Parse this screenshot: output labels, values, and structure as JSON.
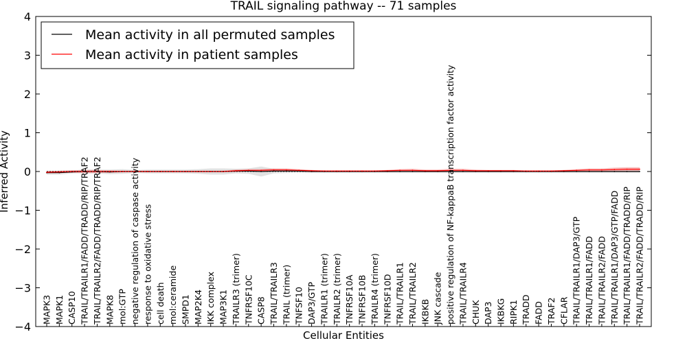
{
  "chart_data": {
    "type": "line",
    "title": "TRAIL signaling pathway -- 71 samples",
    "xlabel": "Cellular Entities",
    "ylabel": "Inferred Activity",
    "ylim": [
      -4,
      4
    ],
    "yticks": [
      -4,
      -3,
      -2,
      -1,
      0,
      1,
      2,
      3,
      4
    ],
    "ytick_labels": [
      "−4",
      "−3",
      "−2",
      "−1",
      "0",
      "1",
      "2",
      "3",
      "4"
    ],
    "grid": false,
    "legend_position": "top-left",
    "categories": [
      "MAPK3",
      "MAPK1",
      "CASP10",
      "TRAIL/TRAILR1/FADD/TRADD/RIP/TRAF2",
      "TRAIL/TRAILR2/FADD/TRADD/RIP/TRAF2",
      "MAPK8",
      "mol:GTP",
      "negative regulation of caspase activity",
      "response to oxidative stress",
      "cell death",
      "mol:ceramide",
      "SMPD1",
      "MAP2K4",
      "IKK complex",
      "MAP3K1",
      "TRAILR3 (trimer)",
      "TNFRSF10C",
      "CASP8",
      "TRAIL/TRAILR3",
      "TRAIL (trimer)",
      "TNFSF10",
      "DAP3/GTP",
      "TRAILR1 (trimer)",
      "TRAILR2 (trimer)",
      "TNFRSF10A",
      "TNFRSF10B",
      "TRAILR4 (trimer)",
      "TNFRSF10D",
      "TRAIL/TRAILR1",
      "TRAIL/TRAILR2",
      "IKBKB",
      "JNK cascade",
      "positive regulation of NF-kappaB transcription factor activity",
      "TRAIL/TRAILR4",
      "CHUK",
      "DAP3",
      "IKBKG",
      "RIPK1",
      "TRADD",
      "FADD",
      "TRAF2",
      "CFLAR",
      "TRAIL/TRAILR1/DAP3/GTP",
      "TRAIL/TRAILR1/FADD",
      "TRAIL/TRAILR2/FADD",
      "TRAIL/TRAILR1/DAP3/GTP/FADD",
      "TRAIL/TRAILR1/FADD/TRADD/RIP",
      "TRAIL/TRAILR2/FADD/TRADD/RIP"
    ],
    "series": [
      {
        "name": "Mean activity in all permuted samples",
        "color": "#000000",
        "band_color": "#c8c8c8",
        "values": [
          -0.03,
          -0.03,
          -0.01,
          0.0,
          0.0,
          -0.01,
          0.0,
          0.0,
          0.0,
          0.0,
          0.0,
          0.0,
          0.0,
          0.0,
          0.0,
          0.01,
          0.01,
          0.0,
          0.01,
          0.01,
          0.01,
          0.0,
          0.0,
          0.0,
          0.0,
          0.0,
          0.0,
          0.0,
          0.0,
          0.0,
          0.0,
          0.0,
          0.0,
          0.0,
          0.0,
          0.0,
          0.0,
          0.0,
          0.0,
          0.0,
          0.0,
          0.0,
          0.0,
          0.0,
          0.0,
          0.0,
          0.0,
          0.0
        ],
        "band": [
          0.05,
          0.05,
          0.04,
          0.05,
          0.05,
          0.06,
          0.06,
          0.04,
          0.05,
          0.05,
          0.05,
          0.05,
          0.06,
          0.08,
          0.08,
          0.06,
          0.07,
          0.13,
          0.06,
          0.05,
          0.04,
          0.03,
          0.03,
          0.03,
          0.03,
          0.03,
          0.03,
          0.03,
          0.03,
          0.03,
          0.03,
          0.03,
          0.03,
          0.03,
          0.03,
          0.03,
          0.03,
          0.03,
          0.03,
          0.03,
          0.03,
          0.03,
          0.03,
          0.03,
          0.03,
          0.03,
          0.03,
          0.03
        ]
      },
      {
        "name": "Mean activity in patient samples",
        "color": "#ff0000",
        "band_color": "#f08080",
        "values": [
          -0.02,
          -0.01,
          0.0,
          0.0,
          0.0,
          0.0,
          0.0,
          0.0,
          0.0,
          0.0,
          0.0,
          0.0,
          0.0,
          0.0,
          0.0,
          0.02,
          0.03,
          0.03,
          0.04,
          0.04,
          0.03,
          0.02,
          0.01,
          0.01,
          0.01,
          0.01,
          0.01,
          0.02,
          0.03,
          0.03,
          0.02,
          0.02,
          0.03,
          0.03,
          0.02,
          0.02,
          0.02,
          0.02,
          0.01,
          0.01,
          0.01,
          0.02,
          0.03,
          0.04,
          0.04,
          0.05,
          0.06,
          0.06
        ],
        "band": [
          0.03,
          0.03,
          0.03,
          0.04,
          0.04,
          0.03,
          0.02,
          0.02,
          0.02,
          0.02,
          0.02,
          0.02,
          0.02,
          0.02,
          0.02,
          0.03,
          0.03,
          0.03,
          0.04,
          0.04,
          0.03,
          0.02,
          0.02,
          0.02,
          0.02,
          0.02,
          0.02,
          0.02,
          0.03,
          0.04,
          0.03,
          0.03,
          0.04,
          0.04,
          0.03,
          0.02,
          0.02,
          0.02,
          0.02,
          0.02,
          0.02,
          0.02,
          0.03,
          0.04,
          0.04,
          0.05,
          0.05,
          0.05
        ]
      }
    ]
  }
}
